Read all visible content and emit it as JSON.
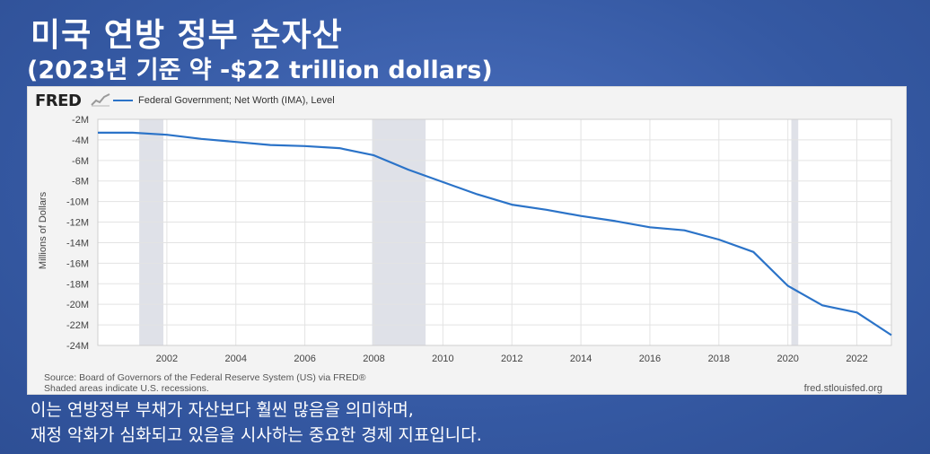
{
  "heading": {
    "title": "미국 연방 정부 순자산",
    "subtitle": "(2023년 기준 약 -$22 trillion dollars)"
  },
  "fred": {
    "logo_text": "FRED",
    "source_line1": "Source: Board of Governors of the Federal Reserve System (US) via FRED®",
    "source_line2": "Shaded areas indicate U.S. recessions.",
    "url": "fred.stlouisfed.org"
  },
  "caption": {
    "line1": "이는 연방정부 부채가 자산보다 훨씬 많음을 의미하며,",
    "line2": "재정 악화가 심화되고 있음을 시사하는 중요한 경제 지표입니다."
  },
  "chart_data": {
    "type": "line",
    "ylabel": "Millions of Dollars",
    "xlim": [
      2000,
      2023
    ],
    "ylim": [
      -24,
      -2
    ],
    "y_ticks": [
      -2,
      -4,
      -6,
      -8,
      -10,
      -12,
      -14,
      -16,
      -18,
      -20,
      -22,
      -24
    ],
    "y_tick_labels": [
      "-2M",
      "-4M",
      "-6M",
      "-8M",
      "-10M",
      "-12M",
      "-14M",
      "-16M",
      "-18M",
      "-20M",
      "-22M",
      "-24M"
    ],
    "x_ticks": [
      2002,
      2004,
      2006,
      2008,
      2010,
      2012,
      2014,
      2016,
      2018,
      2020,
      2022
    ],
    "x_tick_labels": [
      "2002",
      "2004",
      "2006",
      "2008",
      "2010",
      "2012",
      "2014",
      "2016",
      "2018",
      "2020",
      "2022"
    ],
    "grid": true,
    "recessions": [
      [
        2001.2,
        2001.9
      ],
      [
        2007.95,
        2009.5
      ],
      [
        2020.1,
        2020.3
      ]
    ],
    "series": [
      {
        "name": "Federal Government; Net Worth (IMA), Level",
        "color": "#2b73c8",
        "x": [
          2000,
          2001,
          2002,
          2003,
          2004,
          2005,
          2006,
          2007,
          2008,
          2009,
          2010,
          2011,
          2012,
          2013,
          2014,
          2015,
          2016,
          2017,
          2018,
          2019,
          2020,
          2021,
          2022,
          2023
        ],
        "y": [
          -3.3,
          -3.3,
          -3.5,
          -3.9,
          -4.2,
          -4.5,
          -4.6,
          -4.8,
          -5.5,
          -6.9,
          -8.1,
          -9.3,
          -10.3,
          -10.8,
          -11.4,
          -11.9,
          -12.5,
          -12.8,
          -13.7,
          -14.9,
          -18.2,
          -20.1,
          -20.8,
          -23.0
        ]
      }
    ]
  }
}
